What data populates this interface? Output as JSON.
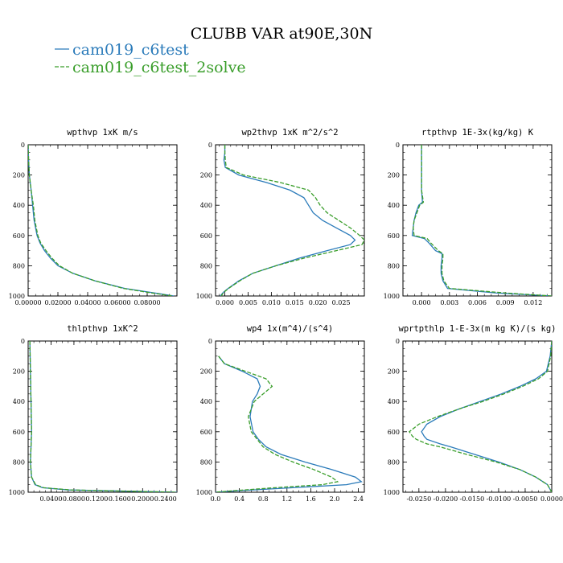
{
  "figure": {
    "title": "CLUBB VAR at90E,30N",
    "legend": [
      {
        "name": "cam019_c6test",
        "color": "#2b7bba",
        "dash": ""
      },
      {
        "name": "cam019_c6test_2solve",
        "color": "#3a9e2b",
        "dash": "5,2"
      }
    ]
  },
  "chart_data": [
    {
      "type": "line",
      "title": "wpthvp   1xK m/s",
      "xlim": [
        0,
        0.1
      ],
      "ylim": [
        0,
        1000
      ],
      "y_inverted": true,
      "xticks": [
        0,
        0.02,
        0.04,
        0.06,
        0.08
      ],
      "xtick_labels": [
        "0.00000",
        "0.02000",
        "0.04000",
        "0.06000",
        "0.08000"
      ],
      "yticks": [
        0,
        200,
        400,
        600,
        800,
        1000
      ],
      "series": [
        {
          "name": "cam019_c6test",
          "y": [
            0,
            100,
            200,
            300,
            400,
            500,
            600,
            650,
            700,
            750,
            800,
            850,
            900,
            950,
            980,
            1000
          ],
          "x": [
            0,
            0.0003,
            0.0008,
            0.002,
            0.003,
            0.004,
            0.006,
            0.008,
            0.011,
            0.015,
            0.02,
            0.03,
            0.045,
            0.065,
            0.085,
            0.098
          ]
        },
        {
          "name": "cam019_c6test_2solve",
          "y": [
            0,
            100,
            200,
            300,
            400,
            500,
            600,
            650,
            700,
            750,
            800,
            850,
            900,
            950,
            980,
            1000
          ],
          "x": [
            0,
            0.0003,
            0.0008,
            0.002,
            0.0035,
            0.0045,
            0.0065,
            0.0085,
            0.012,
            0.016,
            0.021,
            0.03,
            0.045,
            0.064,
            0.083,
            0.097
          ]
        }
      ]
    },
    {
      "type": "line",
      "title": "wp2thvp   1xK m^2/s^2",
      "xlim": [
        -0.002,
        0.03
      ],
      "ylim": [
        0,
        1000
      ],
      "y_inverted": true,
      "xticks": [
        0,
        0.005,
        0.01,
        0.015,
        0.02,
        0.025
      ],
      "xtick_labels": [
        "0.000",
        "0.005",
        "0.010",
        "0.015",
        "0.020",
        "0.025"
      ],
      "yticks": [
        0,
        200,
        400,
        600,
        800,
        1000
      ],
      "series": [
        {
          "name": "cam019_c6test",
          "y": [
            0,
            50,
            100,
            150,
            200,
            250,
            300,
            350,
            400,
            450,
            500,
            550,
            600,
            630,
            660,
            700,
            750,
            800,
            850,
            900,
            950,
            975,
            1000
          ],
          "x": [
            0,
            0,
            -0.0002,
            0.0001,
            0.003,
            0.009,
            0.014,
            0.017,
            0.018,
            0.019,
            0.021,
            0.024,
            0.027,
            0.028,
            0.027,
            0.022,
            0.016,
            0.011,
            0.006,
            0.003,
            0.0007,
            -0.0003,
            -0.001
          ]
        },
        {
          "name": "cam019_c6test_2solve",
          "y": [
            0,
            50,
            100,
            150,
            200,
            250,
            300,
            350,
            400,
            450,
            500,
            550,
            600,
            630,
            660,
            700,
            750,
            800,
            850,
            900,
            950,
            975,
            1000
          ],
          "x": [
            0,
            0,
            0.0001,
            0.0003,
            0.004,
            0.012,
            0.018,
            0.0195,
            0.0205,
            0.022,
            0.0245,
            0.027,
            0.029,
            0.03,
            0.0295,
            0.024,
            0.017,
            0.011,
            0.006,
            0.0032,
            0.0008,
            -0.0002,
            -0.0008
          ]
        }
      ]
    },
    {
      "type": "line",
      "title": "rtpthvp   1E-3x(kg/kg) K",
      "xlim": [
        -0.002,
        0.014
      ],
      "ylim": [
        0,
        1000
      ],
      "y_inverted": true,
      "xticks": [
        0,
        0.003,
        0.006,
        0.009,
        0.012
      ],
      "xtick_labels": [
        "0.000",
        "0.003",
        "0.006",
        "0.009",
        "0.012"
      ],
      "yticks": [
        0,
        200,
        400,
        600,
        800,
        1000
      ],
      "series": [
        {
          "name": "cam019_c6test",
          "y": [
            0,
            100,
            200,
            300,
            380,
            400,
            450,
            500,
            550,
            600,
            620,
            650,
            700,
            720,
            750,
            800,
            850,
            900,
            950,
            980,
            1000
          ],
          "x": [
            0,
            0,
            0,
            0,
            0.0001,
            -0.0003,
            -0.0006,
            -0.0008,
            -0.0009,
            -0.001,
            0.0003,
            0.0008,
            0.0015,
            0.0022,
            0.0022,
            0.0021,
            0.0021,
            0.0023,
            0.0028,
            0.008,
            0.014
          ]
        },
        {
          "name": "cam019_c6test_2solve",
          "y": [
            0,
            100,
            200,
            300,
            380,
            400,
            450,
            500,
            550,
            600,
            620,
            650,
            700,
            720,
            750,
            800,
            850,
            900,
            950,
            980,
            1000
          ],
          "x": [
            0,
            0,
            0,
            0,
            0.0002,
            -0.0002,
            -0.0005,
            -0.0008,
            -0.0009,
            -0.0008,
            0.0006,
            0.001,
            0.0018,
            0.0023,
            0.0023,
            0.0022,
            0.0022,
            0.0024,
            0.003,
            0.009,
            0.014
          ]
        }
      ]
    },
    {
      "type": "line",
      "title": "thlpthvp   1xK^2",
      "xlim": [
        0,
        0.26
      ],
      "ylim": [
        0,
        1000
      ],
      "y_inverted": true,
      "xticks": [
        0.04,
        0.08,
        0.12,
        0.16,
        0.2,
        0.24
      ],
      "xtick_labels": [
        "0.0400",
        "0.0800",
        "0.1200",
        "0.1600",
        "0.2000",
        "0.2400"
      ],
      "yticks": [
        0,
        200,
        400,
        600,
        800,
        1000
      ],
      "series": [
        {
          "name": "cam019_c6test",
          "y": [
            0,
            200,
            400,
            600,
            700,
            800,
            900,
            950,
            970,
            985,
            1000
          ],
          "x": [
            0.003,
            0.004,
            0.005,
            0.006,
            0.005,
            0.004,
            0.006,
            0.012,
            0.025,
            0.07,
            0.26
          ]
        },
        {
          "name": "cam019_c6test_2solve",
          "y": [
            0,
            200,
            400,
            600,
            700,
            800,
            900,
            950,
            970,
            985,
            1000
          ],
          "x": [
            0.003,
            0.004,
            0.005,
            0.006,
            0.005,
            0.004,
            0.006,
            0.013,
            0.027,
            0.075,
            0.26
          ]
        }
      ]
    },
    {
      "type": "line",
      "title": "wp4   1x(m^4)/(s^4)",
      "xlim": [
        0,
        2.5
      ],
      "ylim": [
        0,
        1000
      ],
      "y_inverted": true,
      "xticks": [
        0,
        0.4,
        0.8,
        1.2,
        1.6,
        2,
        2.4
      ],
      "xtick_labels": [
        "0.0",
        "0.4",
        "0.8",
        "1.2",
        "1.6",
        "2.0",
        "2.4"
      ],
      "yticks": [
        0,
        200,
        400,
        600,
        800,
        1000
      ],
      "series": [
        {
          "name": "cam019_c6test",
          "y": [
            100,
            150,
            200,
            250,
            300,
            350,
            400,
            500,
            600,
            650,
            700,
            750,
            800,
            850,
            900,
            930,
            950,
            970,
            990,
            1000
          ],
          "x": [
            0.05,
            0.15,
            0.45,
            0.7,
            0.75,
            0.7,
            0.62,
            0.58,
            0.63,
            0.72,
            0.85,
            1.1,
            1.5,
            1.95,
            2.35,
            2.45,
            2.2,
            1.3,
            0.4,
            0
          ]
        },
        {
          "name": "cam019_c6test_2solve",
          "y": [
            100,
            150,
            200,
            250,
            300,
            350,
            400,
            500,
            600,
            650,
            700,
            750,
            800,
            850,
            900,
            930,
            950,
            970,
            990,
            1000
          ],
          "x": [
            0.05,
            0.15,
            0.5,
            0.85,
            0.95,
            0.8,
            0.65,
            0.55,
            0.6,
            0.7,
            0.8,
            1.0,
            1.3,
            1.65,
            1.95,
            2.05,
            1.8,
            1.0,
            0.3,
            0
          ]
        }
      ]
    },
    {
      "type": "line",
      "title": "wprtpthlp   1-E-3x(m kg K)/(s kg)",
      "xlim": [
        -0.028,
        0
      ],
      "ylim": [
        0,
        1000
      ],
      "y_inverted": true,
      "xticks": [
        -0.025,
        -0.02,
        -0.015,
        -0.01,
        -0.005,
        0
      ],
      "xtick_labels": [
        "-0.0250",
        "-0.0200",
        "-0.0150",
        "-0.0100",
        "-0.0050",
        "0.0000"
      ],
      "yticks": [
        0,
        200,
        400,
        600,
        800,
        1000
      ],
      "series": [
        {
          "name": "cam019_c6test",
          "y": [
            0,
            100,
            200,
            250,
            300,
            350,
            400,
            450,
            500,
            550,
            600,
            630,
            650,
            680,
            700,
            750,
            800,
            850,
            900,
            950,
            1000
          ],
          "x": [
            0,
            -0.0003,
            -0.001,
            -0.003,
            -0.006,
            -0.0095,
            -0.0135,
            -0.0175,
            -0.021,
            -0.0235,
            -0.0245,
            -0.024,
            -0.0235,
            -0.021,
            -0.019,
            -0.0145,
            -0.01,
            -0.006,
            -0.003,
            -0.0008,
            0
          ]
        },
        {
          "name": "cam019_c6test_2solve",
          "y": [
            0,
            100,
            200,
            250,
            300,
            350,
            400,
            450,
            500,
            550,
            600,
            630,
            650,
            680,
            700,
            750,
            800,
            850,
            900,
            950,
            1000
          ],
          "x": [
            0,
            -0.0002,
            -0.0008,
            -0.0025,
            -0.0055,
            -0.009,
            -0.013,
            -0.0175,
            -0.0215,
            -0.025,
            -0.0268,
            -0.0262,
            -0.0255,
            -0.0235,
            -0.021,
            -0.016,
            -0.0105,
            -0.006,
            -0.003,
            -0.0008,
            0
          ]
        }
      ]
    }
  ]
}
